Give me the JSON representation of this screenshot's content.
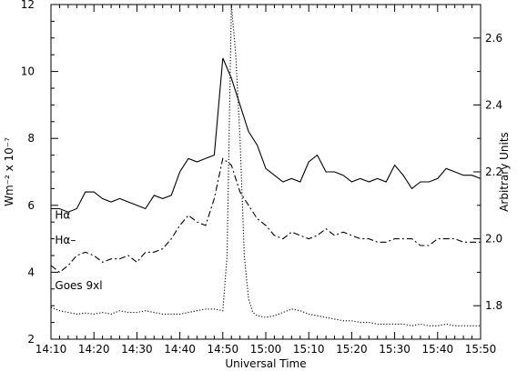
{
  "chart_data": {
    "type": "line",
    "title": "",
    "xlabel": "Universal Time",
    "ylabel_left": "Wm⁻² x 10⁻⁷",
    "ylabel_right": "Arbitrary Units",
    "x_unit": "minutes after 14:10 UT",
    "xlim": [
      0,
      100
    ],
    "ylim_left": [
      2,
      12
    ],
    "ylim_right": [
      1.7,
      2.7
    ],
    "x_ticks": [
      {
        "value": 0,
        "label": "14:10"
      },
      {
        "value": 10,
        "label": "14:20"
      },
      {
        "value": 20,
        "label": "14:30"
      },
      {
        "value": 30,
        "label": "14:40"
      },
      {
        "value": 40,
        "label": "14:50"
      },
      {
        "value": 50,
        "label": "15:00"
      },
      {
        "value": 60,
        "label": "15:10"
      },
      {
        "value": 70,
        "label": "15:20"
      },
      {
        "value": 80,
        "label": "15:30"
      },
      {
        "value": 90,
        "label": "15:40"
      },
      {
        "value": 100,
        "label": "15:50"
      }
    ],
    "y_ticks_left": [
      {
        "value": 2,
        "label": "2"
      },
      {
        "value": 4,
        "label": "4"
      },
      {
        "value": 6,
        "label": "6"
      },
      {
        "value": 8,
        "label": "8"
      },
      {
        "value": 10,
        "label": "10"
      },
      {
        "value": 12,
        "label": "12"
      }
    ],
    "y_ticks_right": [
      {
        "value": 1.8,
        "label": "1.8"
      },
      {
        "value": 2.0,
        "label": "2.0"
      },
      {
        "value": 2.2,
        "label": "2.2"
      },
      {
        "value": 2.4,
        "label": "2.4"
      },
      {
        "value": 2.6,
        "label": "2.6"
      }
    ],
    "series": [
      {
        "name": "Hα",
        "axis": "right",
        "style": "solid",
        "label_at": [
          0.3,
          2.06
        ],
        "x": [
          0,
          2,
          4,
          6,
          8,
          10,
          12,
          14,
          16,
          18,
          20,
          22,
          24,
          26,
          28,
          30,
          32,
          34,
          36,
          38,
          40,
          42,
          44,
          46,
          48,
          50,
          52,
          54,
          56,
          58,
          60,
          62,
          64,
          66,
          68,
          70,
          72,
          74,
          76,
          78,
          80,
          82,
          84,
          86,
          88,
          90,
          92,
          94,
          96,
          98,
          100
        ],
        "y": [
          2.09,
          2.09,
          2.08,
          2.09,
          2.14,
          2.14,
          2.12,
          2.11,
          2.12,
          2.11,
          2.1,
          2.09,
          2.13,
          2.12,
          2.13,
          2.2,
          2.24,
          2.23,
          2.24,
          2.25,
          2.54,
          2.48,
          2.4,
          2.32,
          2.28,
          2.21,
          2.19,
          2.17,
          2.18,
          2.17,
          2.23,
          2.25,
          2.2,
          2.2,
          2.19,
          2.17,
          2.18,
          2.17,
          2.18,
          2.17,
          2.22,
          2.19,
          2.15,
          2.17,
          2.17,
          2.18,
          2.21,
          2.2,
          2.19,
          2.19,
          2.18
        ]
      },
      {
        "name": "Hα–",
        "axis": "right",
        "style": "dashdot",
        "label_at": [
          0.3,
          1.985
        ],
        "x": [
          0,
          2,
          4,
          6,
          8,
          10,
          12,
          14,
          16,
          18,
          20,
          22,
          24,
          26,
          28,
          30,
          32,
          34,
          36,
          38,
          40,
          42,
          44,
          46,
          48,
          50,
          52,
          54,
          56,
          58,
          60,
          62,
          64,
          66,
          68,
          70,
          72,
          74,
          76,
          78,
          80,
          82,
          84,
          86,
          88,
          90,
          92,
          94,
          96,
          98,
          100
        ],
        "y": [
          1.92,
          1.9,
          1.92,
          1.95,
          1.96,
          1.95,
          1.93,
          1.94,
          1.94,
          1.95,
          1.93,
          1.96,
          1.96,
          1.97,
          2.0,
          2.04,
          2.07,
          2.05,
          2.04,
          2.12,
          2.24,
          2.22,
          2.14,
          2.1,
          2.06,
          2.04,
          2.01,
          2.0,
          2.02,
          2.01,
          2.0,
          2.01,
          2.03,
          2.01,
          2.02,
          2.01,
          2.0,
          2.0,
          1.99,
          1.99,
          2.0,
          2.0,
          2.0,
          1.98,
          1.98,
          2.0,
          2.0,
          2.0,
          1.99,
          1.99,
          1.99
        ]
      },
      {
        "name": "Goes 9xl",
        "axis": "left",
        "style": "dotted",
        "label_at": [
          0.3,
          3.5
        ],
        "x": [
          0,
          2,
          4,
          6,
          8,
          10,
          12,
          14,
          16,
          18,
          20,
          22,
          24,
          26,
          28,
          30,
          32,
          34,
          36,
          38,
          40,
          41,
          42,
          43,
          44,
          45,
          46,
          47,
          48,
          50,
          52,
          54,
          56,
          58,
          60,
          62,
          64,
          66,
          68,
          70,
          72,
          74,
          76,
          78,
          80,
          82,
          84,
          86,
          88,
          90,
          92,
          94,
          96,
          98,
          100
        ],
        "y": [
          2.95,
          2.85,
          2.8,
          2.75,
          2.78,
          2.75,
          2.8,
          2.75,
          2.85,
          2.8,
          2.8,
          2.85,
          2.8,
          2.75,
          2.75,
          2.75,
          2.8,
          2.85,
          2.9,
          2.9,
          2.85,
          4.5,
          12.0,
          10.5,
          8.0,
          4.5,
          3.2,
          2.8,
          2.7,
          2.65,
          2.7,
          2.8,
          2.9,
          2.85,
          2.75,
          2.7,
          2.65,
          2.6,
          2.55,
          2.55,
          2.5,
          2.5,
          2.45,
          2.45,
          2.45,
          2.45,
          2.4,
          2.45,
          2.4,
          2.4,
          2.45,
          2.4,
          2.4,
          2.4,
          2.4
        ]
      }
    ],
    "grid": false,
    "legend": "none"
  }
}
